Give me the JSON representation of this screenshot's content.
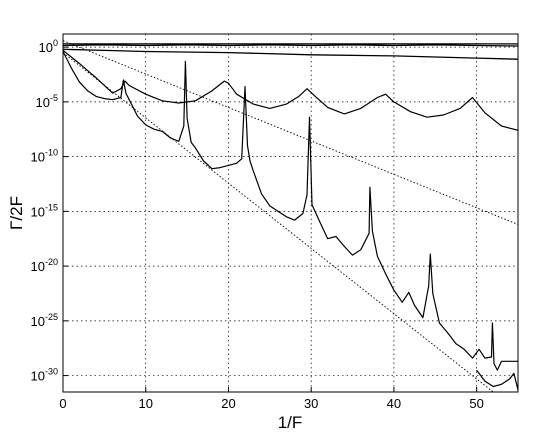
{
  "chart_data": {
    "type": "line",
    "title": "",
    "xlabel": "1/F",
    "ylabel": "Γ/2F",
    "xlim": [
      0,
      55
    ],
    "ylim_log10": [
      -31.5,
      1.2
    ],
    "yscale": "log",
    "grid": true,
    "legend": "none",
    "xticks": [
      0,
      10,
      20,
      30,
      40,
      50
    ],
    "xtick_labels": [
      "0",
      "10",
      "20",
      "30",
      "40",
      "50"
    ],
    "yticks_log10": [
      0,
      -5,
      -10,
      -15,
      -20,
      -25,
      -30
    ],
    "ytick_base": "10",
    "ytick_exponents": [
      "0",
      "-5",
      "-10",
      "-15",
      "-20",
      "-25",
      "-30"
    ],
    "series": [
      {
        "style": "solid-thin",
        "x": [
          0,
          10,
          20,
          30,
          40,
          50,
          55
        ],
        "log10_y": [
          0.3,
          0.3,
          0.3,
          0.3,
          0.3,
          0.3,
          0.3
        ]
      },
      {
        "style": "solid-thin",
        "x": [
          0,
          5,
          10,
          15,
          20,
          25,
          30,
          35,
          40,
          45,
          50,
          55
        ],
        "log10_y": [
          0.15,
          0.2,
          0.15,
          0.2,
          0.15,
          0.2,
          0.15,
          0.2,
          0.15,
          0.2,
          0.15,
          0.1
        ]
      },
      {
        "style": "solid-thin",
        "x": [
          0,
          5,
          10,
          20,
          30,
          40,
          50,
          55
        ],
        "log10_y": [
          -0.2,
          -0.3,
          -0.4,
          -0.5,
          -0.7,
          -0.8,
          -1.0,
          -1.1
        ]
      },
      {
        "style": "solid",
        "x": [
          0,
          2,
          4,
          6,
          7,
          7.5,
          8,
          10,
          12,
          14,
          16,
          18,
          19.5,
          20,
          21,
          23,
          25,
          27,
          28.5,
          29.5,
          30.5,
          32,
          34,
          36,
          38,
          39,
          40,
          42,
          44,
          46,
          48,
          49.5,
          51,
          53,
          55
        ],
        "log10_y": [
          -0.3,
          -1.5,
          -2.8,
          -4.2,
          -3.8,
          -3.1,
          -3.5,
          -4.3,
          -4.9,
          -5.1,
          -4.9,
          -4.0,
          -3.1,
          -3.3,
          -4.3,
          -5.2,
          -5.6,
          -5.2,
          -4.5,
          -3.8,
          -4.5,
          -5.5,
          -6.1,
          -5.6,
          -4.6,
          -4.3,
          -5.0,
          -5.9,
          -6.4,
          -6.2,
          -5.6,
          -4.6,
          -6.0,
          -7.2,
          -7.6
        ]
      },
      {
        "style": "solid",
        "x": [
          0,
          1,
          2,
          3,
          4,
          5,
          6,
          7,
          7.3,
          7.6,
          8,
          9,
          10,
          11,
          12,
          13,
          14,
          14.6,
          14.8,
          15.0,
          15.5,
          16,
          17,
          18,
          19,
          20,
          21,
          21.6,
          22.0,
          22.3,
          22.6,
          23,
          24,
          25,
          26,
          27,
          28,
          29,
          29.5,
          29.8,
          30.1,
          31,
          32,
          33,
          34,
          35,
          36,
          37,
          37.1,
          37.4,
          38,
          39,
          40,
          41,
          41.8,
          42.5,
          43.5,
          44.2,
          44.4,
          44.7,
          45.5,
          46.5,
          47.5,
          48.5,
          49.5,
          50.3,
          51,
          51.8,
          51.9,
          52.1,
          52.5,
          53,
          53.5,
          55
        ],
        "log10_y": [
          -0.4,
          -1.9,
          -3.2,
          -4.0,
          -4.5,
          -4.7,
          -4.8,
          -4.6,
          -3.0,
          -4.2,
          -4.8,
          -6.3,
          -7.1,
          -7.5,
          -7.7,
          -8.3,
          -8.6,
          -7.2,
          -1.3,
          -6.5,
          -8.7,
          -9.2,
          -10.4,
          -11.1,
          -11.0,
          -10.8,
          -10.6,
          -10.2,
          -3.6,
          -9.0,
          -10.4,
          -11.3,
          -13.4,
          -14.5,
          -15.0,
          -15.5,
          -15.8,
          -15.2,
          -13.5,
          -6.4,
          -14.4,
          -15.9,
          -17.5,
          -17.3,
          -18.2,
          -19.0,
          -18.5,
          -17.0,
          -12.8,
          -16.8,
          -19.1,
          -20.7,
          -22.2,
          -23.3,
          -22.4,
          -23.6,
          -24.7,
          -21.8,
          -18.9,
          -22.5,
          -25.2,
          -26.1,
          -27.1,
          -27.6,
          -28.4,
          -27.6,
          -28.4,
          -28.3,
          -25.2,
          -28.9,
          -29.5,
          -28.7,
          -28.7,
          -28.7
        ]
      },
      {
        "style": "dotted",
        "x": [
          0,
          55
        ],
        "log10_y": [
          0.6,
          -16.2
        ]
      },
      {
        "style": "dotted",
        "x": [
          0,
          52
        ],
        "log10_y": [
          -0.5,
          -31.5
        ]
      },
      {
        "style": "solid",
        "x": [
          50,
          51,
          52,
          53,
          54,
          54.5,
          55
        ],
        "log10_y": [
          -29.5,
          -30.5,
          -31.0,
          -30.8,
          -30.3,
          -29.8,
          -31.3
        ]
      }
    ]
  }
}
